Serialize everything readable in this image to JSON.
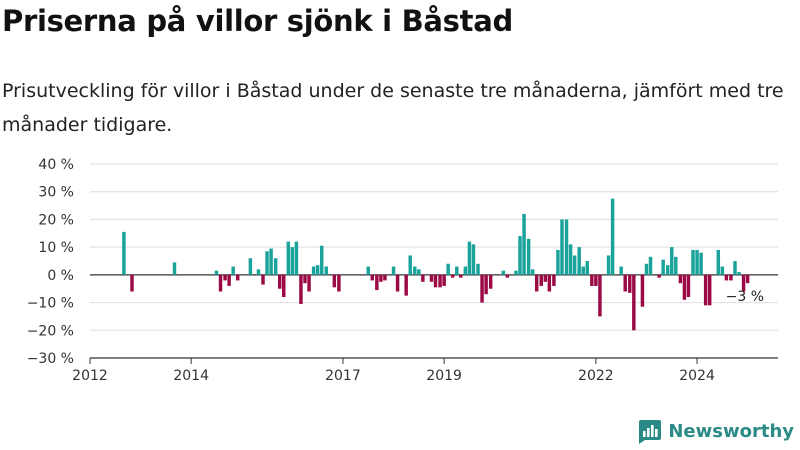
{
  "title": "Priserna på villor sjönk i Båstad",
  "subtitle": "Prisutveckling för villor i Båstad under de senaste tre månaderna, jämfört med tre månader tidigare.",
  "brand": "Newsworthy",
  "colors": {
    "positive": "#1aa39b",
    "negative": "#9c0a45",
    "grid": "#dddddd",
    "axis": "#333333",
    "brand": "#2a8a86"
  },
  "chart_data": {
    "type": "bar",
    "title": "Priserna på villor sjönk i Båstad",
    "xlabel": "",
    "ylabel": "",
    "ylim": [
      -30,
      40
    ],
    "xlim": [
      2012,
      2025.6
    ],
    "grid": true,
    "legend": "none",
    "y_ticks": [
      {
        "value": 40,
        "label": "40 %"
      },
      {
        "value": 30,
        "label": "30 %"
      },
      {
        "value": 20,
        "label": "20 %"
      },
      {
        "value": 10,
        "label": "10 %"
      },
      {
        "value": 0,
        "label": "0 %"
      },
      {
        "value": -10,
        "label": "−10 %"
      },
      {
        "value": -20,
        "label": "−20 %"
      },
      {
        "value": -30,
        "label": "−30 %"
      }
    ],
    "x_ticks": [
      {
        "value": 2012,
        "label": "2012"
      },
      {
        "value": 2014,
        "label": "2014"
      },
      {
        "value": 2017,
        "label": "2017"
      },
      {
        "value": 2019,
        "label": "2019"
      },
      {
        "value": 2022,
        "label": "2022"
      },
      {
        "value": 2024,
        "label": "2024"
      }
    ],
    "last_value_label": "−3 %",
    "bars": [
      [
        2012.67,
        15.5
      ],
      [
        2012.83,
        -6
      ],
      [
        2013.67,
        4.5
      ],
      [
        2014.5,
        1.5
      ],
      [
        2014.58,
        -6
      ],
      [
        2014.67,
        -2
      ],
      [
        2014.75,
        -4
      ],
      [
        2014.83,
        3
      ],
      [
        2014.92,
        -2
      ],
      [
        2015.17,
        6
      ],
      [
        2015.33,
        2
      ],
      [
        2015.42,
        -3.5
      ],
      [
        2015.5,
        8.5
      ],
      [
        2015.58,
        9.5
      ],
      [
        2015.67,
        6
      ],
      [
        2015.75,
        -5
      ],
      [
        2015.83,
        -8
      ],
      [
        2015.92,
        12
      ],
      [
        2016.0,
        10
      ],
      [
        2016.08,
        12
      ],
      [
        2016.17,
        -10.5
      ],
      [
        2016.25,
        -3
      ],
      [
        2016.33,
        -6
      ],
      [
        2016.42,
        3
      ],
      [
        2016.5,
        3.5
      ],
      [
        2016.58,
        10.5
      ],
      [
        2016.67,
        3
      ],
      [
        2016.83,
        -4.5
      ],
      [
        2016.92,
        -6
      ],
      [
        2017.5,
        3
      ],
      [
        2017.58,
        -2
      ],
      [
        2017.67,
        -5.5
      ],
      [
        2017.75,
        -2.5
      ],
      [
        2017.83,
        -2
      ],
      [
        2018.0,
        3
      ],
      [
        2018.08,
        -6
      ],
      [
        2018.25,
        -7.5
      ],
      [
        2018.33,
        7
      ],
      [
        2018.42,
        3
      ],
      [
        2018.5,
        2
      ],
      [
        2018.58,
        -2.5
      ],
      [
        2018.75,
        -2.5
      ],
      [
        2018.83,
        -4.5
      ],
      [
        2018.92,
        -4.5
      ],
      [
        2019.0,
        -4
      ],
      [
        2019.08,
        4
      ],
      [
        2019.17,
        -1
      ],
      [
        2019.25,
        3
      ],
      [
        2019.33,
        -1
      ],
      [
        2019.42,
        3
      ],
      [
        2019.5,
        12
      ],
      [
        2019.58,
        11
      ],
      [
        2019.67,
        4
      ],
      [
        2019.75,
        -10
      ],
      [
        2019.83,
        -7
      ],
      [
        2019.92,
        -5
      ],
      [
        2020.17,
        1.5
      ],
      [
        2020.25,
        -1
      ],
      [
        2020.42,
        1.5
      ],
      [
        2020.5,
        14
      ],
      [
        2020.58,
        22
      ],
      [
        2020.67,
        13
      ],
      [
        2020.75,
        2
      ],
      [
        2020.83,
        -6
      ],
      [
        2020.92,
        -4
      ],
      [
        2021.0,
        -2.5
      ],
      [
        2021.08,
        -6
      ],
      [
        2021.17,
        -4
      ],
      [
        2021.25,
        9
      ],
      [
        2021.33,
        20
      ],
      [
        2021.42,
        20
      ],
      [
        2021.5,
        11
      ],
      [
        2021.58,
        7
      ],
      [
        2021.67,
        10
      ],
      [
        2021.75,
        3
      ],
      [
        2021.83,
        5
      ],
      [
        2021.92,
        -4
      ],
      [
        2022.0,
        -4
      ],
      [
        2022.08,
        -15
      ],
      [
        2022.25,
        7
      ],
      [
        2022.33,
        27.5
      ],
      [
        2022.5,
        3
      ],
      [
        2022.58,
        -6
      ],
      [
        2022.67,
        -6.5
      ],
      [
        2022.75,
        -20
      ],
      [
        2022.92,
        -11.5
      ],
      [
        2023.0,
        4
      ],
      [
        2023.08,
        6.5
      ],
      [
        2023.25,
        -1
      ],
      [
        2023.33,
        5.5
      ],
      [
        2023.42,
        3.5
      ],
      [
        2023.5,
        10
      ],
      [
        2023.58,
        6.5
      ],
      [
        2023.67,
        -3
      ],
      [
        2023.75,
        -9
      ],
      [
        2023.83,
        -8
      ],
      [
        2023.92,
        9
      ],
      [
        2024.0,
        9
      ],
      [
        2024.08,
        8
      ],
      [
        2024.17,
        -11
      ],
      [
        2024.25,
        -11
      ],
      [
        2024.42,
        9
      ],
      [
        2024.5,
        3
      ],
      [
        2024.58,
        -2
      ],
      [
        2024.67,
        -2
      ],
      [
        2024.75,
        5
      ],
      [
        2024.83,
        1
      ],
      [
        2024.92,
        -6
      ],
      [
        2025.0,
        -3
      ]
    ]
  }
}
